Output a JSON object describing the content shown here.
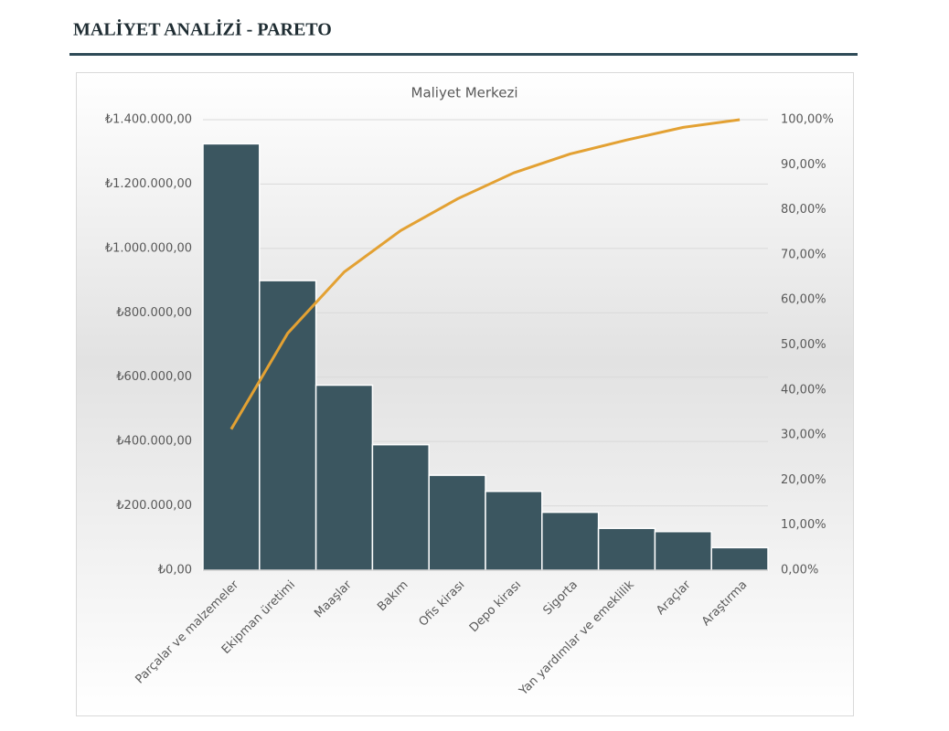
{
  "header": {
    "title": "MALİYET ANALİZİ - PARETO"
  },
  "chart_data": {
    "type": "bar",
    "title": "Maliyet Merkezi",
    "categories": [
      "Parçalar ve malzemeler",
      "Ekipman üretimi",
      "Maaşlar",
      "Bakım",
      "Ofis kirası",
      "Depo kirası",
      "Sigorta",
      "Yan yardımlar ve emeklilik",
      "Araçlar",
      "Araştırma"
    ],
    "series": [
      {
        "type": "bar",
        "color": "#3b5660",
        "values": [
          1325000,
          900000,
          575000,
          390000,
          295000,
          245000,
          180000,
          130000,
          120000,
          70000
        ]
      },
      {
        "type": "line",
        "axis": "y2",
        "color": "#e3a133",
        "values": [
          31.3,
          52.6,
          66.2,
          75.4,
          82.4,
          88.2,
          92.4,
          95.5,
          98.3,
          100
        ]
      }
    ],
    "ylim": [
      0,
      1400000
    ],
    "yticks": [
      {
        "value": 0,
        "label": "₺0,00"
      },
      {
        "value": 200000,
        "label": "₺200.000,00"
      },
      {
        "value": 400000,
        "label": "₺400.000,00"
      },
      {
        "value": 600000,
        "label": "₺600.000,00"
      },
      {
        "value": 800000,
        "label": "₺800.000,00"
      },
      {
        "value": 1000000,
        "label": "₺1.000.000,00"
      },
      {
        "value": 1200000,
        "label": "₺1.200.000,00"
      },
      {
        "value": 1400000,
        "label": "₺1.400.000,00"
      }
    ],
    "y2lim": [
      0,
      100
    ],
    "y2ticks": [
      {
        "value": 0,
        "label": "0,00%"
      },
      {
        "value": 10,
        "label": "10,00%"
      },
      {
        "value": 20,
        "label": "20,00%"
      },
      {
        "value": 30,
        "label": "30,00%"
      },
      {
        "value": 40,
        "label": "40,00%"
      },
      {
        "value": 50,
        "label": "50,00%"
      },
      {
        "value": 60,
        "label": "60,00%"
      },
      {
        "value": 70,
        "label": "70,00%"
      },
      {
        "value": 80,
        "label": "80,00%"
      },
      {
        "value": 90,
        "label": "90,00%"
      },
      {
        "value": 100,
        "label": "100,00%"
      }
    ],
    "grid": true
  }
}
